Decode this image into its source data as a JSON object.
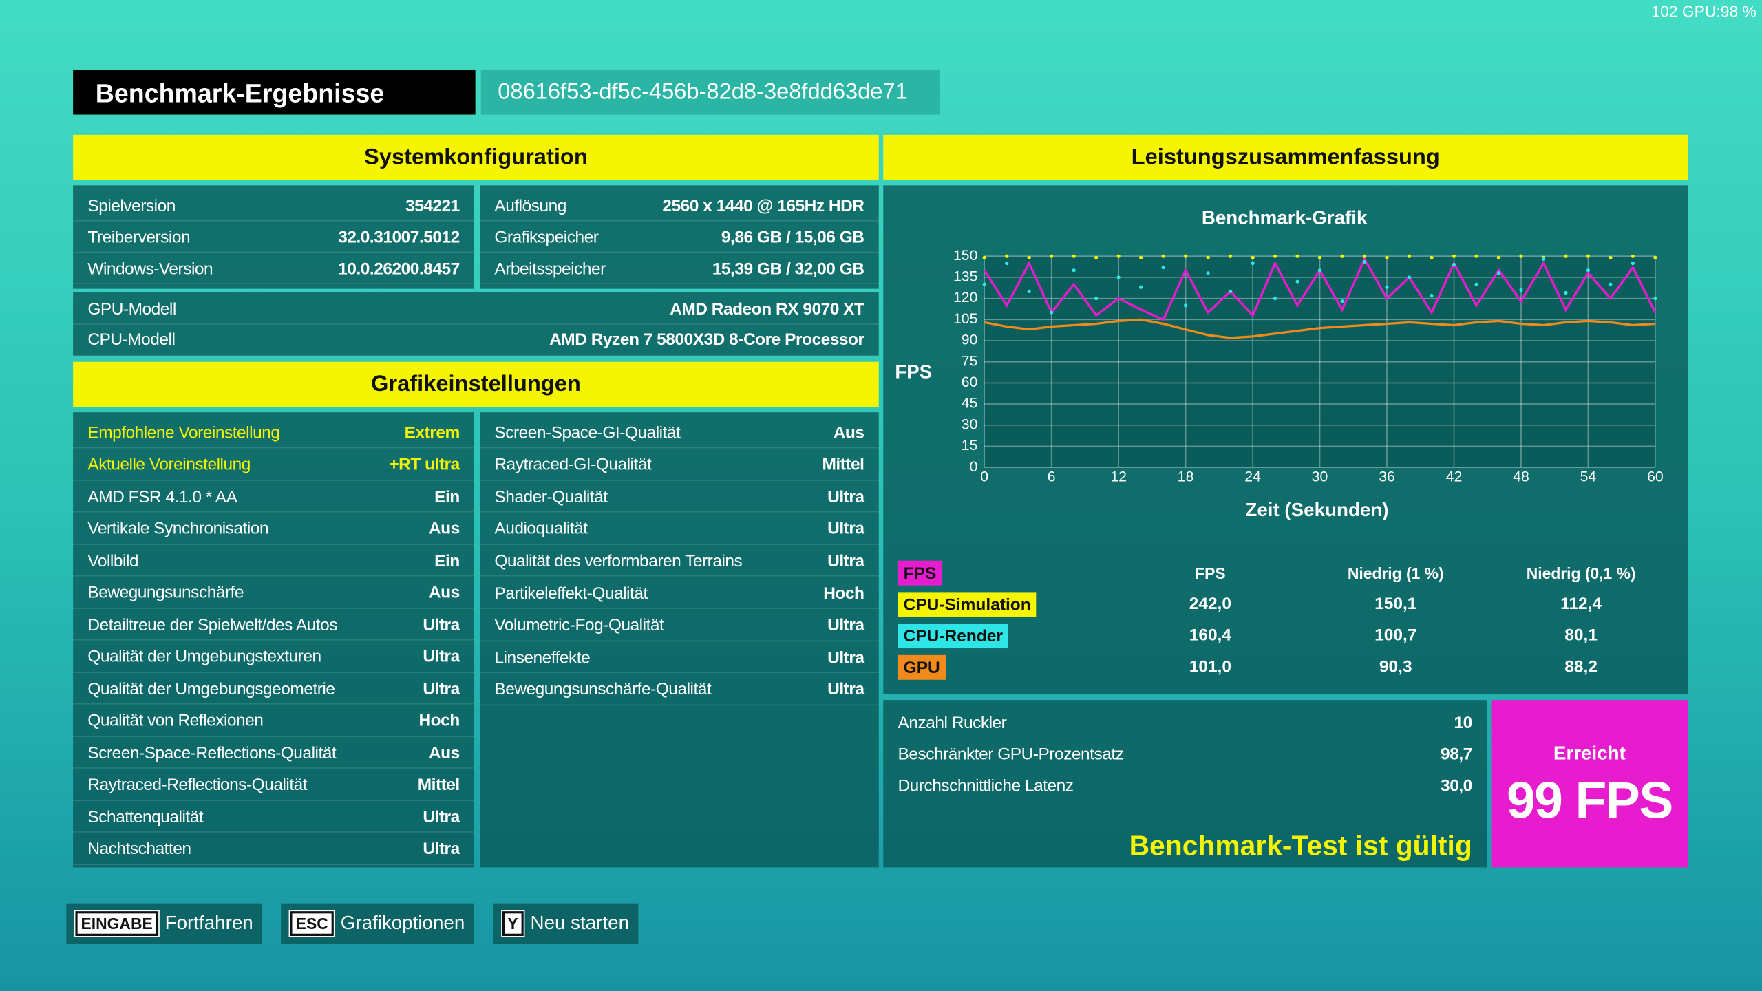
{
  "overlay": "102 GPU:98 %",
  "header": {
    "title": "Benchmark-Ergebnisse",
    "id": "08616f53-df5c-456b-82d8-3e8fdd63de71"
  },
  "system": {
    "title": "Systemkonfiguration",
    "left": [
      [
        "Spielversion",
        "354221"
      ],
      [
        "Treiberversion",
        "32.0.31007.5012"
      ],
      [
        "Windows-Version",
        "10.0.26200.8457"
      ]
    ],
    "right": [
      [
        "Auflösung",
        "2560 x 1440 @ 165Hz HDR"
      ],
      [
        "Grafikspeicher",
        "9,86 GB / 15,06 GB"
      ],
      [
        "Arbeitsspeicher",
        "15,39 GB / 32,00 GB"
      ]
    ],
    "wide": [
      [
        "GPU-Modell",
        "AMD Radeon RX 9070 XT"
      ],
      [
        "CPU-Modell",
        "AMD Ryzen 7 5800X3D 8-Core Processor"
      ]
    ]
  },
  "graphics": {
    "title": "Grafikeinstellungen",
    "left": [
      [
        "Empfohlene Voreinstellung",
        "Extrem"
      ],
      [
        "Aktuelle Voreinstellung",
        "+RT ultra"
      ],
      [
        "AMD FSR 4.1.0 * AA",
        "Ein"
      ],
      [
        "Vertikale Synchronisation",
        "Aus"
      ],
      [
        "Vollbild",
        "Ein"
      ],
      [
        "Bewegungsunschärfe",
        "Aus"
      ],
      [
        "Detailtreue der Spielwelt/des Autos",
        "Ultra"
      ],
      [
        "Qualität der Umgebungstexturen",
        "Ultra"
      ],
      [
        "Qualität der Umgebungsgeometrie",
        "Ultra"
      ],
      [
        "Qualität von Reflexionen",
        "Hoch"
      ],
      [
        "Screen-Space-Reflections-Qualität",
        "Aus"
      ],
      [
        "Raytraced-Reflections-Qualität",
        "Mittel"
      ],
      [
        "Schattenqualität",
        "Ultra"
      ],
      [
        "Nachtschatten",
        "Ultra"
      ]
    ],
    "right": [
      [
        "Screen-Space-GI-Qualität",
        "Aus"
      ],
      [
        "Raytraced-GI-Qualität",
        "Mittel"
      ],
      [
        "Shader-Qualität",
        "Ultra"
      ],
      [
        "Audioqualität",
        "Ultra"
      ],
      [
        "Qualität des verformbaren Terrains",
        "Ultra"
      ],
      [
        "Partikeleffekt-Qualität",
        "Hoch"
      ],
      [
        "Volumetric-Fog-Qualität",
        "Ultra"
      ],
      [
        "Linseneffekte",
        "Ultra"
      ],
      [
        "Bewegungsunschärfe-Qualität",
        "Ultra"
      ]
    ]
  },
  "summary": {
    "title": "Leistungszusammenfassung",
    "table": {
      "columns": [
        "FPS",
        "Niedrig (1 %)",
        "Niedrig (0,1 %)"
      ],
      "rows": [
        [
          "242,0",
          "150,1",
          "112,4"
        ],
        [
          "160,4",
          "100,7",
          "80,1"
        ],
        [
          "101,0",
          "90,3",
          "88,2"
        ]
      ]
    },
    "stats": [
      [
        "Anzahl Ruckler",
        "10"
      ],
      [
        "Beschränkter GPU-Prozentsatz",
        "98,7"
      ],
      [
        "Durchschnittliche Latenz",
        "30,0"
      ]
    ],
    "valid": "Benchmark-Test ist gültig",
    "achieved": {
      "label": "Erreicht",
      "value": "99 FPS"
    }
  },
  "chart_data": {
    "type": "line",
    "title": "Benchmark-Grafik",
    "y_label": "FPS",
    "x_label": "Zeit (Sekunden)",
    "xlim": [
      0,
      60
    ],
    "ylim": [
      0,
      150
    ],
    "xticks": [
      0,
      6,
      12,
      18,
      24,
      30,
      36,
      42,
      48,
      54,
      60
    ],
    "yticks": [
      0,
      15,
      30,
      45,
      60,
      75,
      90,
      105,
      120,
      135,
      150
    ],
    "grid": true,
    "x": [
      0,
      2,
      4,
      6,
      8,
      10,
      12,
      14,
      16,
      18,
      20,
      22,
      24,
      26,
      28,
      30,
      32,
      34,
      36,
      38,
      40,
      42,
      44,
      46,
      48,
      50,
      52,
      54,
      56,
      58,
      60
    ],
    "series": [
      {
        "name": "FPS",
        "color": "#e81ccf",
        "marker": "line",
        "values": [
          140,
          115,
          145,
          110,
          130,
          108,
          120,
          112,
          105,
          140,
          110,
          125,
          108,
          145,
          115,
          140,
          112,
          148,
          120,
          135,
          110,
          145,
          115,
          140,
          118,
          145,
          112,
          138,
          120,
          142,
          110
        ]
      },
      {
        "name": "CPU-Simulation",
        "color": "#f5f500",
        "marker": "dots",
        "values": [
          149,
          150,
          149,
          150,
          150,
          149,
          150,
          149,
          150,
          150,
          149,
          150,
          149,
          150,
          150,
          149,
          150,
          150,
          149,
          150,
          149,
          150,
          150,
          149,
          150,
          149,
          150,
          150,
          149,
          150,
          149
        ]
      },
      {
        "name": "CPU-Render",
        "color": "#2ee6e6",
        "marker": "dots",
        "values": [
          130,
          145,
          125,
          110,
          140,
          120,
          135,
          128,
          142,
          115,
          138,
          125,
          145,
          120,
          132,
          140,
          118,
          146,
          128,
          135,
          122,
          144,
          130,
          138,
          126,
          148,
          124,
          140,
          130,
          145,
          120
        ]
      },
      {
        "name": "GPU",
        "color": "#f08a1a",
        "marker": "line",
        "values": [
          103,
          100,
          98,
          100,
          101,
          102,
          104,
          105,
          102,
          98,
          94,
          92,
          93,
          95,
          97,
          99,
          100,
          101,
          102,
          103,
          102,
          101,
          103,
          104,
          102,
          101,
          103,
          104,
          103,
          101,
          102
        ]
      }
    ]
  },
  "buttons": [
    {
      "key": "EINGABE",
      "label": "Fortfahren"
    },
    {
      "key": "ESC",
      "label": "Grafikoptionen"
    },
    {
      "key": "Y",
      "label": "Neu starten"
    }
  ]
}
